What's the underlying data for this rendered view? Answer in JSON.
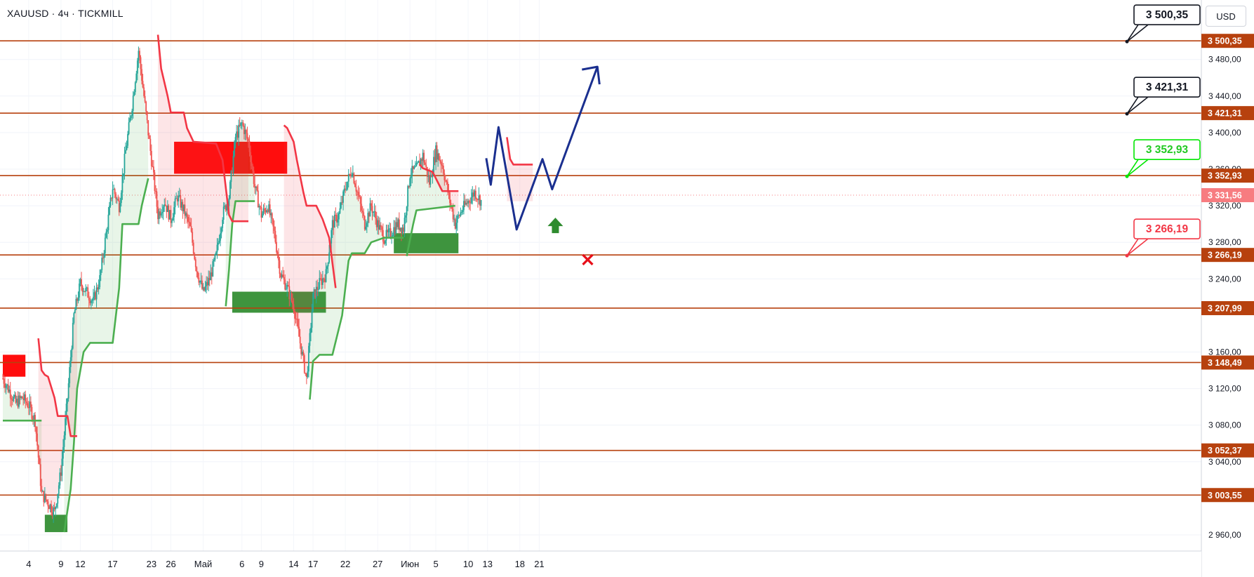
{
  "header": {
    "symbol_line": "XAUUSD · 4ч · TICKMILL",
    "currency": "USD"
  },
  "colors": {
    "level_line": "#b7410e",
    "price_label_bg": "#b7410e",
    "current_price_bg": "#f77c80",
    "bull_candle": "#26a69a",
    "bear_candle": "#ef5350",
    "supertrend_up": "#4caf50",
    "supertrend_down": "#f23645",
    "zone_red": "#ff0000",
    "zone_green": "#2e8b2e",
    "forecast_line": "#1a2f8f",
    "callout_black": "#131722",
    "callout_green": "#00e600",
    "callout_red": "#f23645"
  },
  "chart_data": {
    "type": "candlestick",
    "symbol": "XAUUSD",
    "timeframe": "4ч",
    "broker": "TICKMILL",
    "currency": "USD",
    "ylim": [
      2950,
      3522
    ],
    "y_ticks": [
      {
        "value": 2960,
        "label": "2 960,00"
      },
      {
        "value": 3040,
        "label": "3 040,00"
      },
      {
        "value": 3080,
        "label": "3 080,00"
      },
      {
        "value": 3120,
        "label": "3 120,00"
      },
      {
        "value": 3160,
        "label": "3 160,00"
      },
      {
        "value": 3240,
        "label": "3 240,00"
      },
      {
        "value": 3280,
        "label": "3 280,00"
      },
      {
        "value": 3320,
        "label": "3 320,00"
      },
      {
        "value": 3360,
        "label": "3 360,00"
      },
      {
        "value": 3400,
        "label": "3 400,00"
      },
      {
        "value": 3440,
        "label": "3 440,00"
      },
      {
        "value": 3480,
        "label": "3 480,00"
      }
    ],
    "x_ticks": [
      "4",
      "9",
      "12",
      "17",
      "23",
      "26",
      "Май",
      "6",
      "9",
      "14",
      "17",
      "22",
      "27",
      "Июн",
      "5",
      "10",
      "13",
      "18",
      "21"
    ],
    "x_tick_days": [
      4,
      9,
      12,
      17,
      23,
      26,
      31,
      37,
      40,
      45,
      48,
      53,
      58,
      63,
      67,
      72,
      75,
      80,
      83
    ],
    "levels": [
      {
        "value": 3500.35,
        "label": "3 500,35"
      },
      {
        "value": 3421.31,
        "label": "3 421,31"
      },
      {
        "value": 3352.93,
        "label": "3 352,93"
      },
      {
        "value": 3266.19,
        "label": "3 266,19"
      },
      {
        "value": 3207.99,
        "label": "3 207,99"
      },
      {
        "value": 3148.49,
        "label": "3 148,49"
      },
      {
        "value": 3052.37,
        "label": "3 052,37"
      },
      {
        "value": 3003.55,
        "label": "3 003,55"
      }
    ],
    "current_price": {
      "value": 3331.56,
      "label": "3 331,56"
    },
    "callouts": [
      {
        "text": "3 500,35",
        "value": 3500.35,
        "style": "black"
      },
      {
        "text": "3 421,31",
        "value": 3421.31,
        "style": "black"
      },
      {
        "text": "3 352,93",
        "value": 3352.93,
        "style": "green"
      },
      {
        "text": "3 266,19",
        "value": 3266.19,
        "style": "red"
      }
    ],
    "path_points": [
      [
        0,
        3131
      ],
      [
        1,
        3118
      ],
      [
        2,
        3104
      ],
      [
        3,
        3110
      ],
      [
        4,
        3102
      ],
      [
        5,
        3085
      ],
      [
        6,
        3005
      ],
      [
        7,
        2995
      ],
      [
        8,
        2985
      ],
      [
        9,
        3030
      ],
      [
        10,
        3110
      ],
      [
        11,
        3200
      ],
      [
        12,
        3235
      ],
      [
        13,
        3225
      ],
      [
        14,
        3215
      ],
      [
        15,
        3240
      ],
      [
        16,
        3290
      ],
      [
        17,
        3340
      ],
      [
        18,
        3320
      ],
      [
        19,
        3380
      ],
      [
        20,
        3430
      ],
      [
        21,
        3490
      ],
      [
        22,
        3430
      ],
      [
        23,
        3370
      ],
      [
        24,
        3310
      ],
      [
        25,
        3325
      ],
      [
        26,
        3305
      ],
      [
        27,
        3330
      ],
      [
        28,
        3315
      ],
      [
        29,
        3295
      ],
      [
        30,
        3250
      ],
      [
        31,
        3225
      ],
      [
        32,
        3240
      ],
      [
        33,
        3265
      ],
      [
        34,
        3310
      ],
      [
        35,
        3330
      ],
      [
        36,
        3395
      ],
      [
        37,
        3410
      ],
      [
        38,
        3390
      ],
      [
        39,
        3340
      ],
      [
        40,
        3310
      ],
      [
        41,
        3320
      ],
      [
        42,
        3290
      ],
      [
        43,
        3245
      ],
      [
        44,
        3230
      ],
      [
        45,
        3210
      ],
      [
        46,
        3170
      ],
      [
        47,
        3130
      ],
      [
        48,
        3220
      ],
      [
        49,
        3235
      ],
      [
        50,
        3245
      ],
      [
        51,
        3300
      ],
      [
        52,
        3310
      ],
      [
        53,
        3340
      ],
      [
        54,
        3360
      ],
      [
        55,
        3330
      ],
      [
        56,
        3300
      ],
      [
        57,
        3320
      ],
      [
        58,
        3300
      ],
      [
        59,
        3285
      ],
      [
        60,
        3290
      ],
      [
        61,
        3300
      ],
      [
        62,
        3295
      ],
      [
        63,
        3355
      ],
      [
        64,
        3360
      ],
      [
        65,
        3375
      ],
      [
        66,
        3345
      ],
      [
        67,
        3380
      ],
      [
        68,
        3365
      ],
      [
        69,
        3330
      ],
      [
        70,
        3300
      ],
      [
        71,
        3315
      ],
      [
        72,
        3325
      ],
      [
        73,
        3335
      ],
      [
        74,
        3325
      ]
    ],
    "supertrend": {
      "up": [
        [
          [
            0,
            3085
          ],
          [
            6,
            3085
          ]
        ],
        [
          [
            9.5,
            2963
          ],
          [
            10.5,
            3010
          ],
          [
            11,
            3060
          ],
          [
            11.5,
            3120
          ],
          [
            12.5,
            3160
          ],
          [
            13.5,
            3170
          ],
          [
            17,
            3170
          ],
          [
            18,
            3230
          ],
          [
            18.5,
            3300
          ],
          [
            21,
            3300
          ],
          [
            21.5,
            3320
          ],
          [
            22.5,
            3350
          ]
        ],
        [
          [
            34.5,
            3210
          ],
          [
            35,
            3250
          ],
          [
            35.5,
            3300
          ],
          [
            36,
            3325
          ],
          [
            39,
            3325
          ]
        ],
        [
          [
            47.5,
            3108
          ],
          [
            48,
            3150
          ],
          [
            49,
            3157
          ],
          [
            51,
            3157
          ],
          [
            52.5,
            3200
          ],
          [
            53.5,
            3260
          ],
          [
            54,
            3268
          ],
          [
            56,
            3268
          ],
          [
            57,
            3280
          ],
          [
            59,
            3285
          ],
          [
            62,
            3285
          ]
        ],
        [
          [
            62.5,
            3265
          ],
          [
            63.5,
            3300
          ],
          [
            64,
            3315
          ],
          [
            70,
            3320
          ]
        ]
      ],
      "down": [
        [
          [
            5.5,
            3175
          ],
          [
            6,
            3140
          ],
          [
            6.5,
            3135
          ],
          [
            7,
            3133
          ],
          [
            8,
            3110
          ],
          [
            8.5,
            3090
          ],
          [
            10,
            3090
          ],
          [
            10.5,
            3068
          ],
          [
            11.5,
            3068
          ]
        ],
        [
          [
            24,
            3507
          ],
          [
            24.5,
            3470
          ],
          [
            25.5,
            3440
          ],
          [
            26,
            3422
          ],
          [
            28,
            3422
          ],
          [
            28.5,
            3405
          ],
          [
            29.5,
            3390
          ],
          [
            33,
            3388
          ],
          [
            34,
            3370
          ],
          [
            34.5,
            3340
          ],
          [
            35,
            3310
          ],
          [
            35.5,
            3303
          ],
          [
            38,
            3303
          ]
        ],
        [
          [
            43.5,
            3408
          ],
          [
            44,
            3405
          ],
          [
            45,
            3390
          ],
          [
            45.5,
            3370
          ],
          [
            46.5,
            3335
          ],
          [
            47,
            3320
          ],
          [
            48.5,
            3320
          ],
          [
            49.5,
            3305
          ],
          [
            50.5,
            3285
          ],
          [
            51.5,
            3230
          ]
        ],
        [
          [
            64.5,
            3365
          ],
          [
            65,
            3361
          ],
          [
            66.5,
            3357
          ],
          [
            68,
            3336
          ],
          [
            70.5,
            3336
          ]
        ],
        [
          [
            78,
            3395
          ],
          [
            78.5,
            3371
          ],
          [
            79,
            3365
          ],
          [
            82,
            3365
          ]
        ]
      ]
    },
    "zones": [
      {
        "type": "supply",
        "x0": 0,
        "x1": 3.5,
        "y0": 3133,
        "y1": 3157
      },
      {
        "type": "demand",
        "x0": 6.5,
        "x1": 10,
        "y0": 2963,
        "y1": 2982
      },
      {
        "type": "supply",
        "x0": 26.5,
        "x1": 44,
        "y0": 3355,
        "y1": 3390
      },
      {
        "type": "demand",
        "x0": 35.5,
        "x1": 50,
        "y0": 3203,
        "y1": 3226
      },
      {
        "type": "demand",
        "x0": 60.5,
        "x1": 70.5,
        "y0": 3268,
        "y1": 3290
      }
    ],
    "forecast_path": [
      [
        74.8,
        3372
      ],
      [
        75.5,
        3343
      ],
      [
        76.7,
        3406
      ],
      [
        79.5,
        3294
      ],
      [
        83.5,
        3371
      ],
      [
        85,
        3338
      ],
      [
        92,
        3472
      ]
    ],
    "forecast_arrow_tip": [
      92,
      3472
    ],
    "up_arrow_marker": {
      "x": 85.5,
      "y": 3290
    },
    "cross_marker": {
      "x": 90.5,
      "y": 3261
    }
  }
}
